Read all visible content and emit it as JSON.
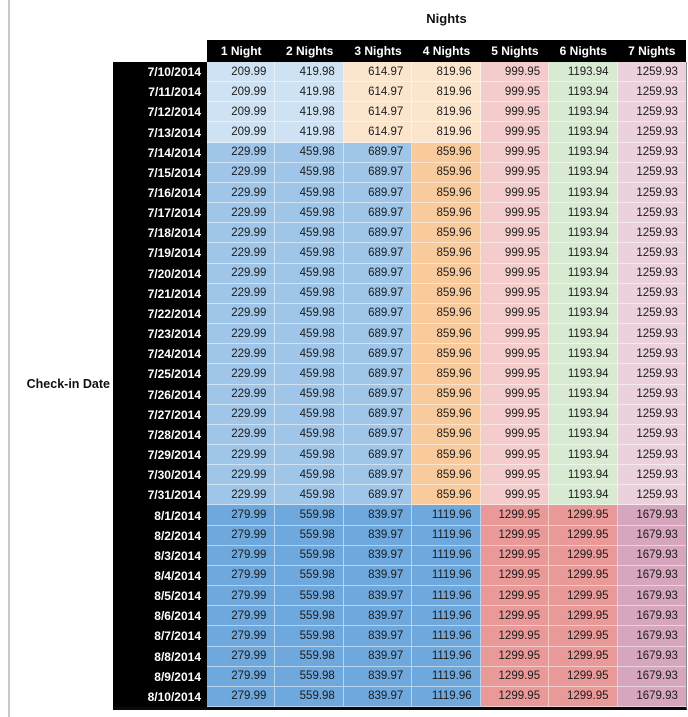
{
  "page": {
    "title": "Nights",
    "row_axis_label": "Check-in Date"
  },
  "colors": {
    "header_bg": "#000000",
    "header_text": "#ffffff",
    "date_bg": "#000000",
    "date_text": "#ffffff",
    "value_text": "#1c1c1c",
    "left_rule": "#c9c9c9",
    "band_colors": {
      "early": [
        "#CFE2F3",
        "#CFE2F3",
        "#FCE5CD",
        "#FCE5CD",
        "#F4CCCC",
        "#D9EAD3",
        "#EAD1DC"
      ],
      "mid": [
        "#9FC5E8",
        "#9FC5E8",
        "#9FC5E8",
        "#F9CB9C",
        "#F4CCCC",
        "#D9EAD3",
        "#EAD1DC"
      ],
      "late": [
        "#6FA8DC",
        "#6FA8DC",
        "#6FA8DC",
        "#6FA8DC",
        "#EA9999",
        "#EA9999",
        "#D5A6BD"
      ]
    }
  },
  "chart_data": {
    "type": "table",
    "title": "Nights",
    "row_header": "Check-in Date",
    "columns": [
      "1 Night",
      "2 Nights",
      "3 Nights",
      "4 Nights",
      "5 Nights",
      "6 Nights",
      "7 Nights"
    ],
    "rows": [
      {
        "date": "7/10/2014",
        "band": "early",
        "values": [
          209.99,
          419.98,
          614.97,
          819.96,
          999.95,
          1193.94,
          1259.93
        ]
      },
      {
        "date": "7/11/2014",
        "band": "early",
        "values": [
          209.99,
          419.98,
          614.97,
          819.96,
          999.95,
          1193.94,
          1259.93
        ]
      },
      {
        "date": "7/12/2014",
        "band": "early",
        "values": [
          209.99,
          419.98,
          614.97,
          819.96,
          999.95,
          1193.94,
          1259.93
        ]
      },
      {
        "date": "7/13/2014",
        "band": "early",
        "values": [
          209.99,
          419.98,
          614.97,
          819.96,
          999.95,
          1193.94,
          1259.93
        ]
      },
      {
        "date": "7/14/2014",
        "band": "mid",
        "values": [
          229.99,
          459.98,
          689.97,
          859.96,
          999.95,
          1193.94,
          1259.93
        ]
      },
      {
        "date": "7/15/2014",
        "band": "mid",
        "values": [
          229.99,
          459.98,
          689.97,
          859.96,
          999.95,
          1193.94,
          1259.93
        ]
      },
      {
        "date": "7/16/2014",
        "band": "mid",
        "values": [
          229.99,
          459.98,
          689.97,
          859.96,
          999.95,
          1193.94,
          1259.93
        ]
      },
      {
        "date": "7/17/2014",
        "band": "mid",
        "values": [
          229.99,
          459.98,
          689.97,
          859.96,
          999.95,
          1193.94,
          1259.93
        ]
      },
      {
        "date": "7/18/2014",
        "band": "mid",
        "values": [
          229.99,
          459.98,
          689.97,
          859.96,
          999.95,
          1193.94,
          1259.93
        ]
      },
      {
        "date": "7/19/2014",
        "band": "mid",
        "values": [
          229.99,
          459.98,
          689.97,
          859.96,
          999.95,
          1193.94,
          1259.93
        ]
      },
      {
        "date": "7/20/2014",
        "band": "mid",
        "values": [
          229.99,
          459.98,
          689.97,
          859.96,
          999.95,
          1193.94,
          1259.93
        ]
      },
      {
        "date": "7/21/2014",
        "band": "mid",
        "values": [
          229.99,
          459.98,
          689.97,
          859.96,
          999.95,
          1193.94,
          1259.93
        ]
      },
      {
        "date": "7/22/2014",
        "band": "mid",
        "values": [
          229.99,
          459.98,
          689.97,
          859.96,
          999.95,
          1193.94,
          1259.93
        ]
      },
      {
        "date": "7/23/2014",
        "band": "mid",
        "values": [
          229.99,
          459.98,
          689.97,
          859.96,
          999.95,
          1193.94,
          1259.93
        ]
      },
      {
        "date": "7/24/2014",
        "band": "mid",
        "values": [
          229.99,
          459.98,
          689.97,
          859.96,
          999.95,
          1193.94,
          1259.93
        ]
      },
      {
        "date": "7/25/2014",
        "band": "mid",
        "values": [
          229.99,
          459.98,
          689.97,
          859.96,
          999.95,
          1193.94,
          1259.93
        ]
      },
      {
        "date": "7/26/2014",
        "band": "mid",
        "values": [
          229.99,
          459.98,
          689.97,
          859.96,
          999.95,
          1193.94,
          1259.93
        ]
      },
      {
        "date": "7/27/2014",
        "band": "mid",
        "values": [
          229.99,
          459.98,
          689.97,
          859.96,
          999.95,
          1193.94,
          1259.93
        ]
      },
      {
        "date": "7/28/2014",
        "band": "mid",
        "values": [
          229.99,
          459.98,
          689.97,
          859.96,
          999.95,
          1193.94,
          1259.93
        ]
      },
      {
        "date": "7/29/2014",
        "band": "mid",
        "values": [
          229.99,
          459.98,
          689.97,
          859.96,
          999.95,
          1193.94,
          1259.93
        ]
      },
      {
        "date": "7/30/2014",
        "band": "mid",
        "values": [
          229.99,
          459.98,
          689.97,
          859.96,
          999.95,
          1193.94,
          1259.93
        ]
      },
      {
        "date": "7/31/2014",
        "band": "mid",
        "values": [
          229.99,
          459.98,
          689.97,
          859.96,
          999.95,
          1193.94,
          1259.93
        ]
      },
      {
        "date": "8/1/2014",
        "band": "late",
        "values": [
          279.99,
          559.98,
          839.97,
          1119.96,
          1299.95,
          1299.95,
          1679.93
        ]
      },
      {
        "date": "8/2/2014",
        "band": "late",
        "values": [
          279.99,
          559.98,
          839.97,
          1119.96,
          1299.95,
          1299.95,
          1679.93
        ]
      },
      {
        "date": "8/3/2014",
        "band": "late",
        "values": [
          279.99,
          559.98,
          839.97,
          1119.96,
          1299.95,
          1299.95,
          1679.93
        ]
      },
      {
        "date": "8/4/2014",
        "band": "late",
        "values": [
          279.99,
          559.98,
          839.97,
          1119.96,
          1299.95,
          1299.95,
          1679.93
        ]
      },
      {
        "date": "8/5/2014",
        "band": "late",
        "values": [
          279.99,
          559.98,
          839.97,
          1119.96,
          1299.95,
          1299.95,
          1679.93
        ]
      },
      {
        "date": "8/6/2014",
        "band": "late",
        "values": [
          279.99,
          559.98,
          839.97,
          1119.96,
          1299.95,
          1299.95,
          1679.93
        ]
      },
      {
        "date": "8/7/2014",
        "band": "late",
        "values": [
          279.99,
          559.98,
          839.97,
          1119.96,
          1299.95,
          1299.95,
          1679.93
        ]
      },
      {
        "date": "8/8/2014",
        "band": "late",
        "values": [
          279.99,
          559.98,
          839.97,
          1119.96,
          1299.95,
          1299.95,
          1679.93
        ]
      },
      {
        "date": "8/9/2014",
        "band": "late",
        "values": [
          279.99,
          559.98,
          839.97,
          1119.96,
          1299.95,
          1299.95,
          1679.93
        ]
      },
      {
        "date": "8/10/2014",
        "band": "late",
        "values": [
          279.99,
          559.98,
          839.97,
          1119.96,
          1299.95,
          1299.95,
          1679.93
        ]
      }
    ]
  }
}
